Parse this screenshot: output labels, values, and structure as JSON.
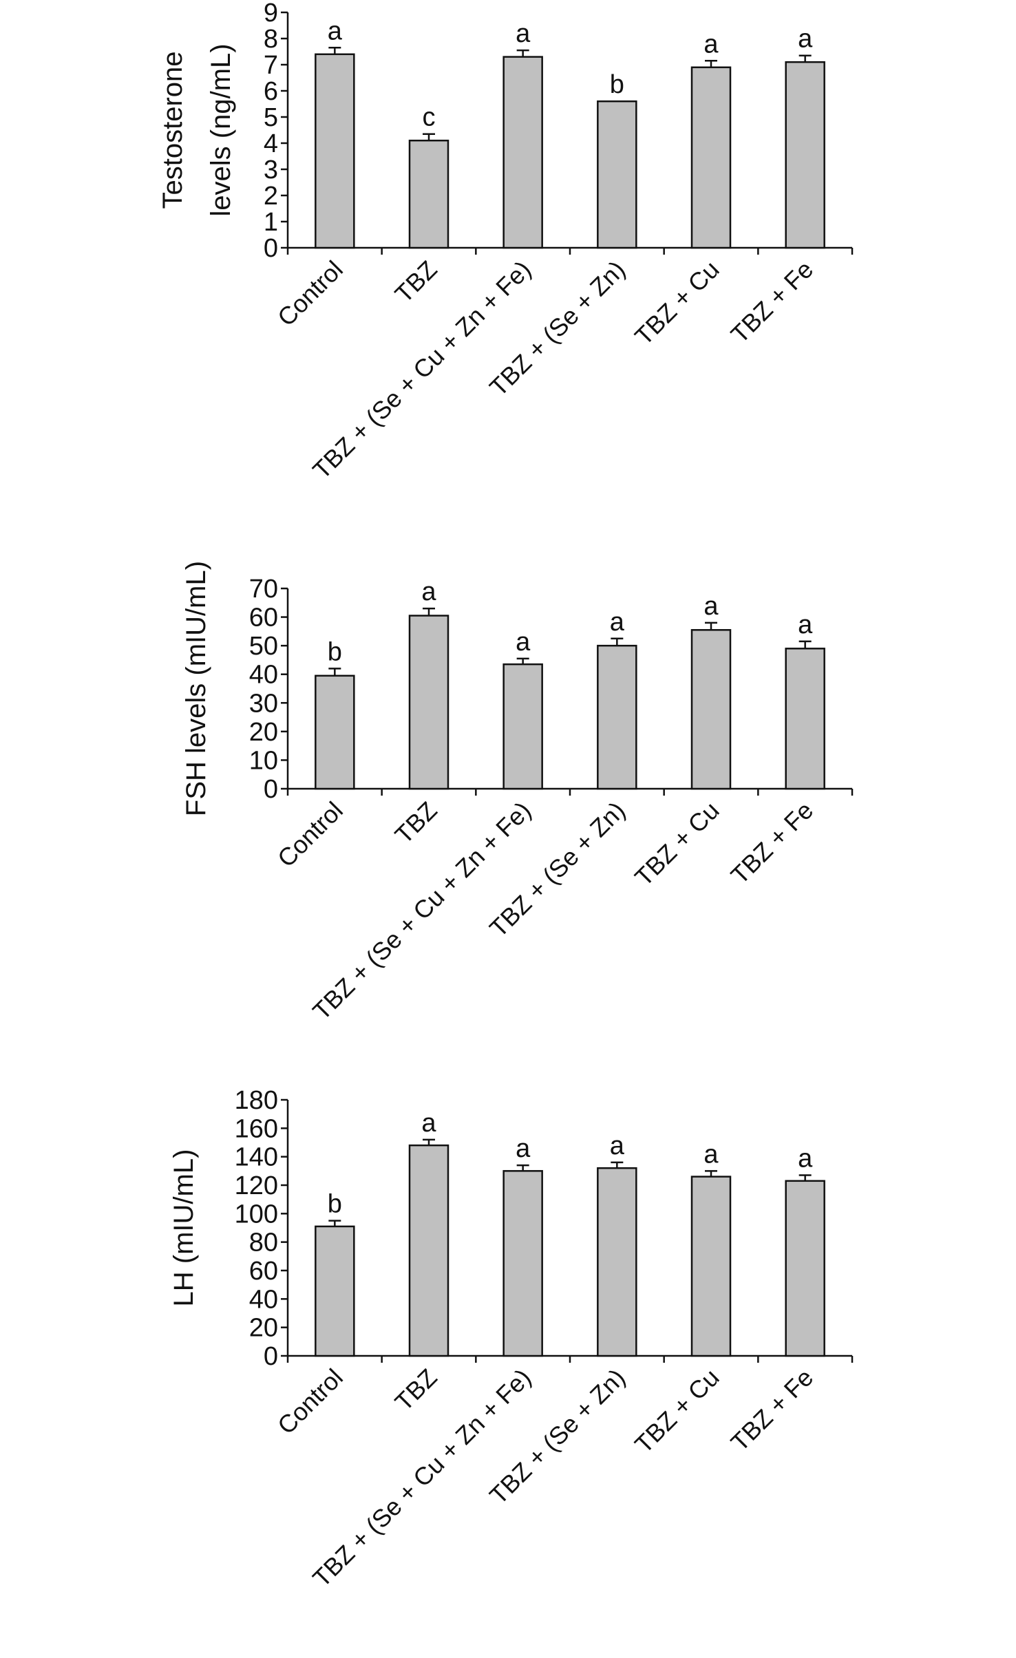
{
  "chart_data": [
    {
      "type": "bar",
      "ylabel_lines": [
        "Testosterone",
        "levels (ng/mL)"
      ],
      "categories": [
        "Control",
        "TBZ",
        "TBZ + (Se + Cu + Zn + Fe)",
        "TBZ + (Se + Zn)",
        "TBZ + Cu",
        "TBZ + Fe"
      ],
      "values": [
        7.4,
        4.1,
        7.3,
        5.6,
        6.9,
        7.1
      ],
      "errors": [
        0.25,
        0.25,
        0.25,
        0.0,
        0.25,
        0.25
      ],
      "significance": [
        "a",
        "c",
        "a",
        "b",
        "a",
        "a"
      ],
      "ylim": [
        0,
        9
      ],
      "yticks": [
        "0",
        "1",
        "2",
        "3",
        "4",
        "5",
        "6",
        "7",
        "8",
        "9"
      ],
      "grid": false,
      "bar_color": "#c0c0c0"
    },
    {
      "type": "bar",
      "ylabel_lines": [
        "FSH levels (mIU/mL)"
      ],
      "categories": [
        "Control",
        "TBZ",
        "TBZ + (Se + Cu + Zn + Fe)",
        "TBZ + (Se + Zn)",
        "TBZ + Cu",
        "TBZ + Fe"
      ],
      "values": [
        39.5,
        60.5,
        43.5,
        50,
        55.5,
        49
      ],
      "errors": [
        2.5,
        2.5,
        2.0,
        2.5,
        2.5,
        2.5
      ],
      "significance": [
        "b",
        "a",
        "a",
        "a",
        "a",
        "a"
      ],
      "ylim": [
        0,
        70
      ],
      "yticks": [
        "0",
        "10",
        "20",
        "30",
        "40",
        "50",
        "60",
        "70"
      ],
      "grid": false,
      "bar_color": "#c0c0c0"
    },
    {
      "type": "bar",
      "ylabel_lines": [
        "LH (mIU/mL)"
      ],
      "categories": [
        "Control",
        "TBZ",
        "TBZ + (Se + Cu + Zn + Fe)",
        "TBZ + (Se + Zn)",
        "TBZ + Cu",
        "TBZ + Fe"
      ],
      "values": [
        91,
        148,
        130,
        132,
        126,
        123
      ],
      "errors": [
        4,
        4,
        4,
        4,
        4,
        4
      ],
      "significance": [
        "b",
        "a",
        "a",
        "a",
        "a",
        "a"
      ],
      "ylim": [
        0,
        180
      ],
      "yticks": [
        "0",
        "20",
        "40",
        "60",
        "80",
        "100",
        "120",
        "140",
        "160",
        "180"
      ],
      "grid": false,
      "bar_color": "#c0c0c0"
    }
  ]
}
